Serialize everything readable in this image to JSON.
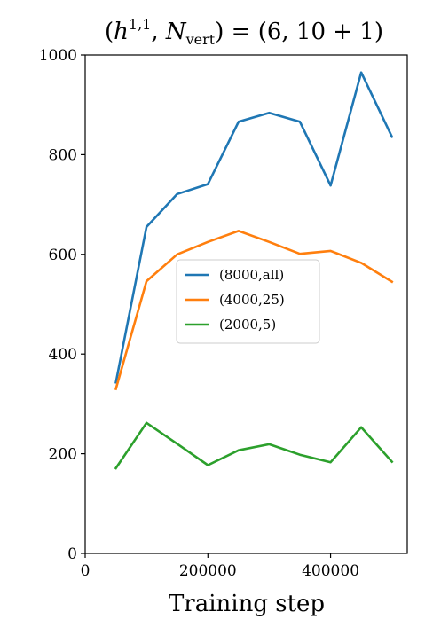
{
  "chart_data": {
    "type": "line",
    "title": "(h¹·¹, N_vert) = (6, 10 + 1)",
    "title_parts": {
      "open": "(",
      "h": "h",
      "h_sup": "1,1",
      "comma1": ", ",
      "N": "N",
      "N_sub": "vert",
      "rest": ") = (6, 10 + 1)"
    },
    "xlabel": "Training step",
    "ylabel": "",
    "xlim": [
      0,
      525000
    ],
    "ylim": [
      0,
      1000
    ],
    "x_ticks": [
      0,
      200000,
      400000
    ],
    "x_tick_labels": [
      "0",
      "200000",
      "400000"
    ],
    "y_ticks": [
      0,
      200,
      400,
      600,
      800,
      1000
    ],
    "y_tick_labels": [
      "0",
      "200",
      "400",
      "600",
      "800",
      "1000"
    ],
    "grid": false,
    "legend_position": "center",
    "x": [
      50000,
      100000,
      150000,
      200000,
      250000,
      300000,
      350000,
      400000,
      450000,
      500000
    ],
    "series": [
      {
        "name": "(8000,all)",
        "color": "#1f77b4",
        "values": [
          343,
          655,
          721,
          741,
          866,
          884,
          866,
          738,
          965,
          836
        ]
      },
      {
        "name": "(4000,25)",
        "color": "#ff7f0e",
        "values": [
          330,
          546,
          600,
          625,
          647,
          625,
          601,
          607,
          583,
          545
        ]
      },
      {
        "name": "(2000,5)",
        "color": "#2ca02c",
        "values": [
          171,
          262,
          220,
          177,
          207,
          219,
          198,
          183,
          253,
          184
        ]
      }
    ]
  }
}
